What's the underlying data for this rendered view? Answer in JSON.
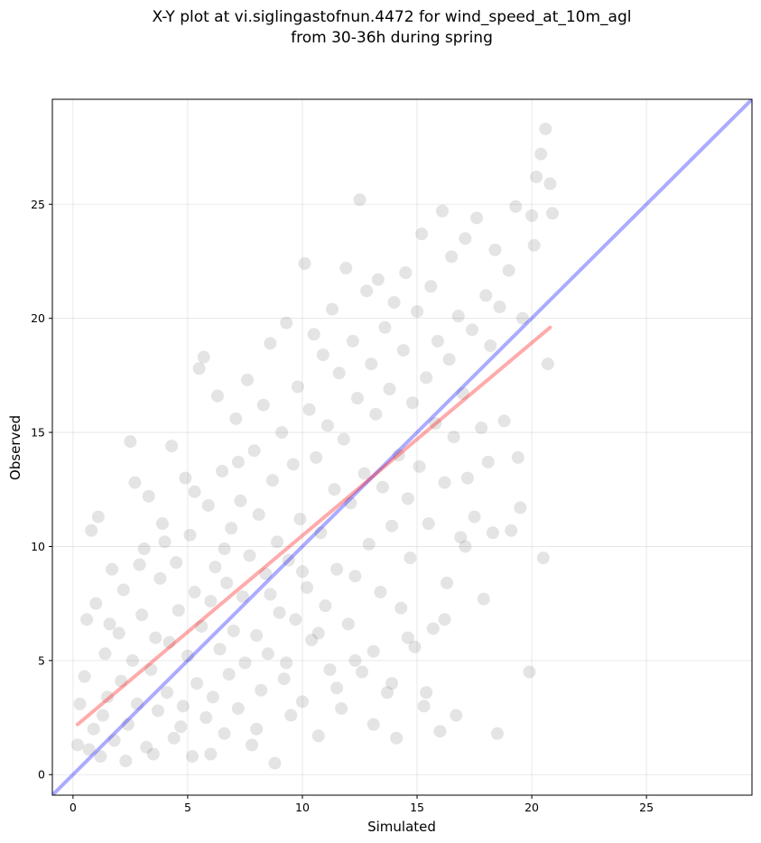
{
  "chart_data": {
    "type": "scatter",
    "title_line1": "X-Y plot at vi.siglingastofnun.4472 for wind_speed_at_10m_agl",
    "title_line2": "from 30-36h during spring",
    "xlabel": "Simulated",
    "ylabel": "Observed",
    "xlim": [
      -0.9,
      29.6
    ],
    "ylim": [
      -0.9,
      29.6
    ],
    "xticks": [
      0,
      5,
      10,
      15,
      20,
      25
    ],
    "yticks": [
      0,
      5,
      10,
      15,
      20,
      25
    ],
    "xtick_labels": [
      "0",
      "5",
      "10",
      "15",
      "20",
      "25"
    ],
    "ytick_labels": [
      "0",
      "5",
      "10",
      "15",
      "20",
      "25"
    ],
    "grid": true,
    "point_color": "#555555",
    "series": [
      {
        "values": [
          [
            0.2,
            1.3
          ],
          [
            0.5,
            4.3
          ],
          [
            0.6,
            6.8
          ],
          [
            0.8,
            10.7
          ],
          [
            0.9,
            2.0
          ],
          [
            1.1,
            11.3
          ],
          [
            1.0,
            7.5
          ],
          [
            1.2,
            0.8
          ],
          [
            1.4,
            5.3
          ],
          [
            1.5,
            3.4
          ],
          [
            1.7,
            9.0
          ],
          [
            1.8,
            1.5
          ],
          [
            2.0,
            6.2
          ],
          [
            2.1,
            4.1
          ],
          [
            2.2,
            8.1
          ],
          [
            2.4,
            2.2
          ],
          [
            2.5,
            14.6
          ],
          [
            2.6,
            5.0
          ],
          [
            2.7,
            12.8
          ],
          [
            2.8,
            3.1
          ],
          [
            3.0,
            7.0
          ],
          [
            3.1,
            9.9
          ],
          [
            3.2,
            1.2
          ],
          [
            3.3,
            12.2
          ],
          [
            3.4,
            4.6
          ],
          [
            3.6,
            6.0
          ],
          [
            3.7,
            2.8
          ],
          [
            3.8,
            8.6
          ],
          [
            3.9,
            11.0
          ],
          [
            4.1,
            3.6
          ],
          [
            4.2,
            5.8
          ],
          [
            4.3,
            14.4
          ],
          [
            4.4,
            1.6
          ],
          [
            4.5,
            9.3
          ],
          [
            4.6,
            7.2
          ],
          [
            4.8,
            3.0
          ],
          [
            4.9,
            13.0
          ],
          [
            5.0,
            5.2
          ],
          [
            5.1,
            10.5
          ],
          [
            5.2,
            0.8
          ],
          [
            5.3,
            8.0
          ],
          [
            5.4,
            4.0
          ],
          [
            5.5,
            17.8
          ],
          [
            5.6,
            6.5
          ],
          [
            5.7,
            18.3
          ],
          [
            5.8,
            2.5
          ],
          [
            5.9,
            11.8
          ],
          [
            6.0,
            7.6
          ],
          [
            6.1,
            3.4
          ],
          [
            6.2,
            9.1
          ],
          [
            6.3,
            16.6
          ],
          [
            6.4,
            5.5
          ],
          [
            6.5,
            13.3
          ],
          [
            6.6,
            1.8
          ],
          [
            6.7,
            8.4
          ],
          [
            6.8,
            4.4
          ],
          [
            6.9,
            10.8
          ],
          [
            7.0,
            6.3
          ],
          [
            7.1,
            15.6
          ],
          [
            7.2,
            2.9
          ],
          [
            7.3,
            12.0
          ],
          [
            7.4,
            7.8
          ],
          [
            7.5,
            4.9
          ],
          [
            7.6,
            17.3
          ],
          [
            7.7,
            9.6
          ],
          [
            7.8,
            1.3
          ],
          [
            7.9,
            14.2
          ],
          [
            8.0,
            6.1
          ],
          [
            8.1,
            11.4
          ],
          [
            8.2,
            3.7
          ],
          [
            8.3,
            16.2
          ],
          [
            8.4,
            8.8
          ],
          [
            8.5,
            5.3
          ],
          [
            8.6,
            18.9
          ],
          [
            8.7,
            12.9
          ],
          [
            8.8,
            0.5
          ],
          [
            8.9,
            10.2
          ],
          [
            9.0,
            7.1
          ],
          [
            9.1,
            15.0
          ],
          [
            9.2,
            4.2
          ],
          [
            9.3,
            19.8
          ],
          [
            9.4,
            9.4
          ],
          [
            9.5,
            2.6
          ],
          [
            9.6,
            13.6
          ],
          [
            9.7,
            6.8
          ],
          [
            9.8,
            17.0
          ],
          [
            9.9,
            11.2
          ],
          [
            10.0,
            3.2
          ],
          [
            10.1,
            22.4
          ],
          [
            10.2,
            8.2
          ],
          [
            10.3,
            16.0
          ],
          [
            10.4,
            5.9
          ],
          [
            10.5,
            19.3
          ],
          [
            10.6,
            13.9
          ],
          [
            10.7,
            1.7
          ],
          [
            10.8,
            10.6
          ],
          [
            10.9,
            18.4
          ],
          [
            11.0,
            7.4
          ],
          [
            11.1,
            15.3
          ],
          [
            11.2,
            4.6
          ],
          [
            11.3,
            20.4
          ],
          [
            11.4,
            12.5
          ],
          [
            11.5,
            9.0
          ],
          [
            11.6,
            17.6
          ],
          [
            11.7,
            2.9
          ],
          [
            11.8,
            14.7
          ],
          [
            11.9,
            22.2
          ],
          [
            12.0,
            6.6
          ],
          [
            12.1,
            11.9
          ],
          [
            12.2,
            19.0
          ],
          [
            12.3,
            8.7
          ],
          [
            12.4,
            16.5
          ],
          [
            12.5,
            25.2
          ],
          [
            12.6,
            4.5
          ],
          [
            12.7,
            13.2
          ],
          [
            12.8,
            21.2
          ],
          [
            12.9,
            10.1
          ],
          [
            13.0,
            18.0
          ],
          [
            13.1,
            5.4
          ],
          [
            13.2,
            15.8
          ],
          [
            13.3,
            21.7
          ],
          [
            13.4,
            8.0
          ],
          [
            13.5,
            12.6
          ],
          [
            13.6,
            19.6
          ],
          [
            13.7,
            3.6
          ],
          [
            13.8,
            16.9
          ],
          [
            13.9,
            10.9
          ],
          [
            14.0,
            20.7
          ],
          [
            14.1,
            1.6
          ],
          [
            14.2,
            14.0
          ],
          [
            14.3,
            7.3
          ],
          [
            14.4,
            18.6
          ],
          [
            14.5,
            22.0
          ],
          [
            14.6,
            12.1
          ],
          [
            14.7,
            9.5
          ],
          [
            14.8,
            16.3
          ],
          [
            14.9,
            5.6
          ],
          [
            15.0,
            20.3
          ],
          [
            15.1,
            13.5
          ],
          [
            15.2,
            23.7
          ],
          [
            15.3,
            3.0
          ],
          [
            15.4,
            17.4
          ],
          [
            15.5,
            11.0
          ],
          [
            15.6,
            21.4
          ],
          [
            15.7,
            6.4
          ],
          [
            15.8,
            15.4
          ],
          [
            15.9,
            19.0
          ],
          [
            16.0,
            1.9
          ],
          [
            16.1,
            24.7
          ],
          [
            16.2,
            12.8
          ],
          [
            16.3,
            8.4
          ],
          [
            16.4,
            18.2
          ],
          [
            16.5,
            22.7
          ],
          [
            16.6,
            14.8
          ],
          [
            16.7,
            2.6
          ],
          [
            16.8,
            20.1
          ],
          [
            16.9,
            10.4
          ],
          [
            17.0,
            16.7
          ],
          [
            17.1,
            23.5
          ],
          [
            17.2,
            13.0
          ],
          [
            17.4,
            19.5
          ],
          [
            17.5,
            11.3
          ],
          [
            17.6,
            24.4
          ],
          [
            17.8,
            15.2
          ],
          [
            17.9,
            7.7
          ],
          [
            18.0,
            21.0
          ],
          [
            18.1,
            13.7
          ],
          [
            18.2,
            18.8
          ],
          [
            18.3,
            10.6
          ],
          [
            18.4,
            23.0
          ],
          [
            18.5,
            1.8
          ],
          [
            18.6,
            20.5
          ],
          [
            18.8,
            15.5
          ],
          [
            19.0,
            22.1
          ],
          [
            19.1,
            10.7
          ],
          [
            19.3,
            24.9
          ],
          [
            19.4,
            13.9
          ],
          [
            19.5,
            11.7
          ],
          [
            19.6,
            20.0
          ],
          [
            19.9,
            4.5
          ],
          [
            20.0,
            24.5
          ],
          [
            20.1,
            23.2
          ],
          [
            20.2,
            26.2
          ],
          [
            20.4,
            27.2
          ],
          [
            20.5,
            9.5
          ],
          [
            20.6,
            28.3
          ],
          [
            20.7,
            18.0
          ],
          [
            20.8,
            25.9
          ],
          [
            20.9,
            24.6
          ],
          [
            0.3,
            3.1
          ],
          [
            0.7,
            1.1
          ],
          [
            1.3,
            2.6
          ],
          [
            1.6,
            6.6
          ],
          [
            2.3,
            0.6
          ],
          [
            2.9,
            9.2
          ],
          [
            3.5,
            0.9
          ],
          [
            4.0,
            10.2
          ],
          [
            4.7,
            2.1
          ],
          [
            5.3,
            12.4
          ],
          [
            6.0,
            0.9
          ],
          [
            6.6,
            9.9
          ],
          [
            7.2,
            13.7
          ],
          [
            8.0,
            2.0
          ],
          [
            8.6,
            7.9
          ],
          [
            9.3,
            4.9
          ],
          [
            10.0,
            8.9
          ],
          [
            10.7,
            6.2
          ],
          [
            11.5,
            3.8
          ],
          [
            12.3,
            5.0
          ],
          [
            13.1,
            2.2
          ],
          [
            13.9,
            4.0
          ],
          [
            14.6,
            6.0
          ],
          [
            15.4,
            3.6
          ],
          [
            16.2,
            6.8
          ],
          [
            17.1,
            10.0
          ]
        ]
      }
    ],
    "fit_line": {
      "color": "#ff0000",
      "x": [
        0.2,
        20.8
      ],
      "y": [
        2.2,
        19.6
      ]
    },
    "identity_line": {
      "color": "#0000ff"
    }
  }
}
